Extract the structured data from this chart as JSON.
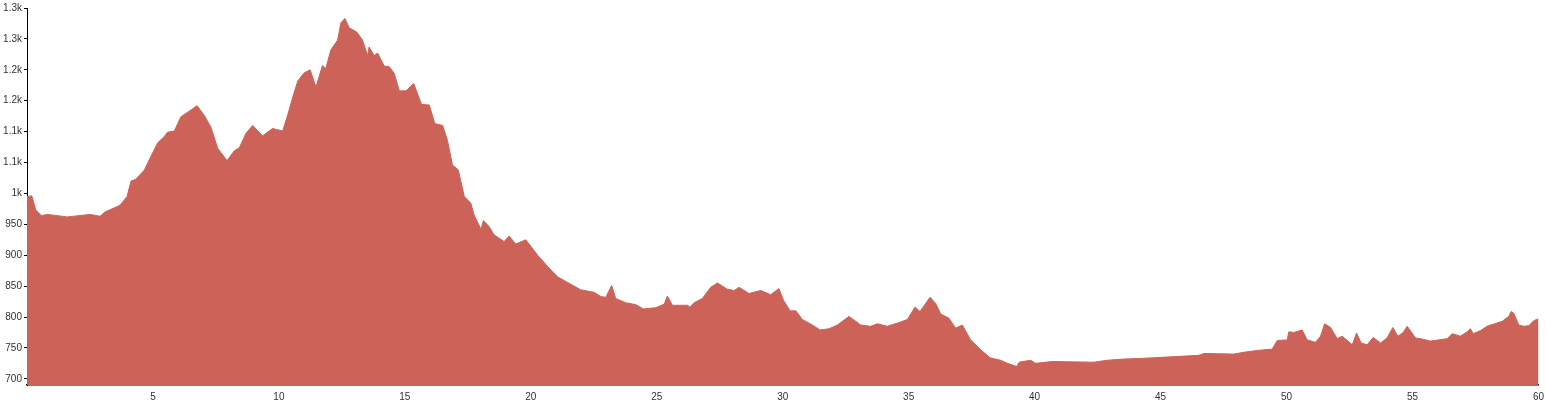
{
  "chart_data": {
    "type": "area",
    "color": "#cd6358",
    "grid": false,
    "legend": false,
    "marker": "none",
    "x": [
      0,
      0.19,
      0.35,
      0.57,
      0.81,
      1.6,
      2.5,
      2.9,
      3.1,
      3.7,
      3.97,
      4.13,
      4.32,
      4.66,
      4.92,
      5.19,
      5.45,
      5.58,
      5.85,
      6.11,
      6.51,
      6.75,
      7.04,
      7.3,
      7.57,
      7.94,
      8.23,
      8.43,
      8.69,
      8.96,
      9.35,
      9.75,
      10.15,
      10.35,
      10.55,
      10.75,
      11.0,
      11.24,
      11.47,
      11.73,
      11.86,
      12.06,
      12.33,
      12.46,
      12.62,
      12.79,
      13.09,
      13.32,
      13.52,
      13.58,
      13.78,
      13.92,
      14.18,
      14.38,
      14.58,
      14.78,
      15.05,
      15.35,
      15.66,
      15.97,
      16.19,
      16.5,
      16.69,
      16.89,
      17.12,
      17.36,
      17.62,
      17.75,
      18.02,
      18.12,
      18.35,
      18.54,
      18.94,
      19.14,
      19.4,
      19.8,
      20.27,
      20.66,
      21.06,
      21.46,
      21.98,
      22.51,
      22.78,
      22.98,
      23.21,
      23.37,
      23.77,
      24.17,
      24.47,
      24.96,
      25.3,
      25.42,
      25.62,
      26.22,
      26.32,
      26.48,
      26.81,
      27.14,
      27.41,
      27.8,
      28.07,
      28.27,
      28.66,
      29.13,
      29.52,
      29.85,
      30.03,
      30.29,
      30.52,
      30.78,
      31.18,
      31.48,
      31.84,
      32.17,
      32.63,
      33.1,
      33.49,
      33.76,
      34.15,
      34.62,
      34.95,
      35.25,
      35.45,
      35.85,
      36.07,
      36.27,
      36.6,
      36.86,
      37.13,
      37.46,
      37.86,
      38.23,
      38.65,
      38.92,
      39.29,
      39.39,
      39.84,
      40.04,
      40.7,
      42.22,
      42.35,
      42.88,
      43.54,
      44.21,
      45.6,
      46.52,
      46.72,
      47.91,
      48.31,
      48.84,
      49.43,
      49.63,
      50.03,
      50.09,
      50.29,
      50.62,
      50.82,
      51.15,
      51.35,
      51.51,
      51.75,
      52.01,
      52.21,
      52.61,
      52.78,
      52.96,
      53.2,
      53.44,
      53.73,
      53.99,
      54.22,
      54.42,
      54.63,
      54.79,
      55.12,
      55.32,
      55.71,
      56.38,
      56.58,
      56.9,
      57.17,
      57.3,
      57.41,
      57.7,
      57.96,
      58.56,
      58.82,
      58.92,
      59.02,
      59.22,
      59.42,
      59.62,
      59.81,
      60
    ],
    "values": [
      995,
      996,
      973,
      964,
      966,
      962,
      966,
      963,
      970,
      981,
      995,
      1020,
      1023,
      1038,
      1060,
      1082,
      1092,
      1099,
      1101,
      1124,
      1135,
      1142,
      1126,
      1107,
      1073,
      1053,
      1069,
      1074,
      1097,
      1110,
      1093,
      1105,
      1101,
      1127,
      1156,
      1182,
      1195,
      1200,
      1172,
      1207,
      1202,
      1232,
      1248,
      1276,
      1283,
      1268,
      1261,
      1248,
      1223,
      1237,
      1223,
      1227,
      1206,
      1205,
      1194,
      1166,
      1166,
      1178,
      1144,
      1143,
      1113,
      1110,
      1086,
      1046,
      1038,
      995,
      984,
      965,
      942,
      956,
      946,
      933,
      922,
      931,
      918,
      925,
      900,
      882,
      865,
      856,
      844,
      840,
      833,
      832,
      851,
      830,
      823,
      820,
      813,
      815,
      821,
      834,
      819,
      819,
      816,
      823,
      830,
      848,
      855,
      845,
      843,
      848,
      838,
      843,
      836,
      846,
      827,
      810,
      810,
      796,
      787,
      779,
      781,
      787,
      801,
      787,
      785,
      789,
      785,
      791,
      796,
      816,
      809,
      832,
      822,
      805,
      798,
      782,
      787,
      763,
      747,
      734,
      730,
      725,
      720,
      727,
      730,
      725,
      728,
      727,
      727,
      730,
      732,
      733,
      736,
      738,
      741,
      740,
      743,
      746,
      748,
      762,
      763,
      776,
      775,
      779,
      763,
      759,
      769,
      789,
      783,
      765,
      769,
      755,
      774,
      758,
      755,
      767,
      758,
      766,
      783,
      769,
      775,
      785,
      766,
      765,
      761,
      765,
      773,
      769,
      776,
      781,
      773,
      778,
      785,
      793,
      801,
      809,
      806,
      787,
      785,
      786,
      794,
      797
    ],
    "xlim": [
      0,
      60
    ],
    "xticks": [
      5,
      10,
      15,
      20,
      25,
      30,
      35,
      40,
      45,
      50,
      55,
      60
    ],
    "ylim": [
      690,
      1300
    ],
    "yticks": [
      700,
      750,
      800,
      850,
      900,
      950,
      {
        "value": 1000,
        "label": "1k"
      },
      {
        "value": 1050,
        "label": "1.1k"
      },
      {
        "value": 1100,
        "label": "1.1k"
      },
      {
        "value": 1150,
        "label": "1.2k"
      },
      {
        "value": 1200,
        "label": "1.2k"
      },
      {
        "value": 1250,
        "label": "1.3k"
      },
      {
        "value": 1300,
        "label": "1.3k"
      }
    ]
  }
}
